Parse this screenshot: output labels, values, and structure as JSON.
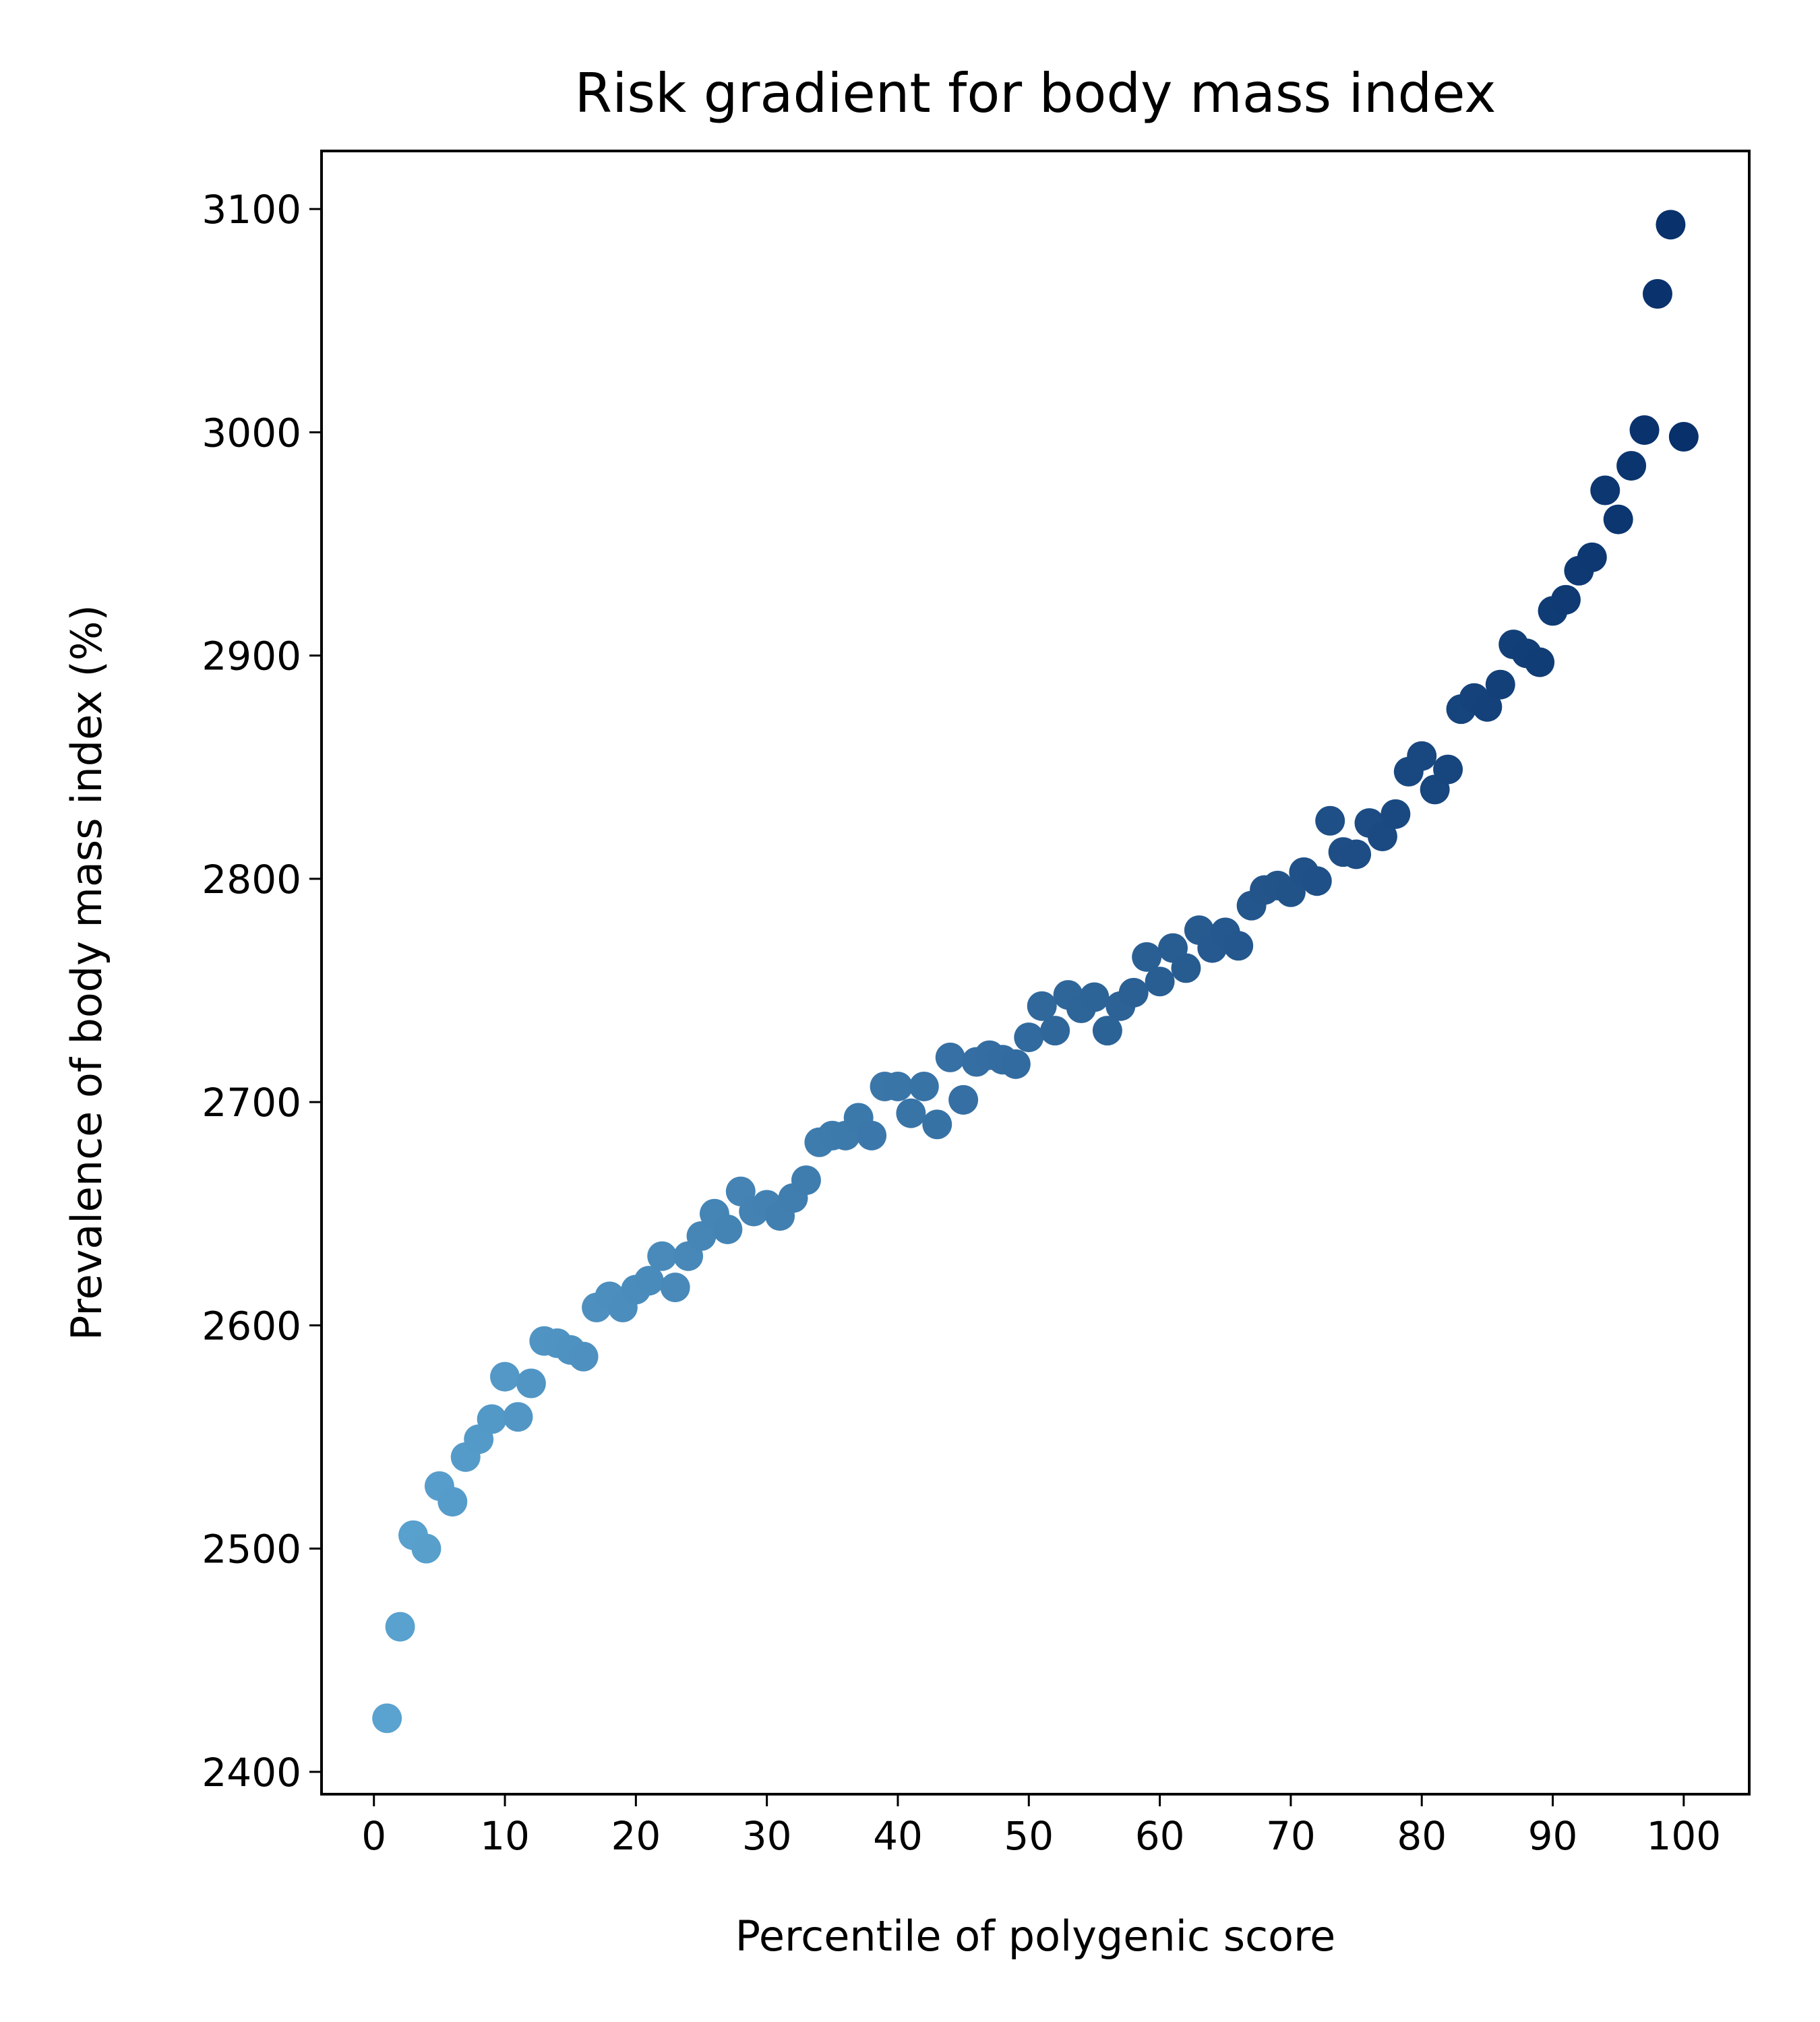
{
  "chart_data": {
    "type": "scatter",
    "title": "Risk gradient for body mass index",
    "xlabel": "Percentile of polygenic score",
    "ylabel": "Prevalence of body mass index (%)",
    "xlim": [
      -4,
      105
    ],
    "ylim": [
      2390,
      3126
    ],
    "x_ticks": [
      0,
      10,
      20,
      30,
      40,
      50,
      60,
      70,
      80,
      90,
      100
    ],
    "y_ticks": [
      2400,
      2500,
      2600,
      2700,
      2800,
      2900,
      3000,
      3100
    ],
    "grid": false,
    "legend": "none",
    "colormap": "Blues",
    "color_range": [
      "#5aa2cf",
      "#08306b"
    ],
    "series": [
      {
        "x": [
          1,
          2,
          3,
          4,
          5,
          6,
          7,
          8,
          9,
          10,
          11,
          12,
          13,
          14,
          15,
          16,
          17,
          18,
          19,
          20,
          21,
          22,
          23,
          24,
          25,
          26,
          27,
          28,
          29,
          30,
          31,
          32,
          33,
          34,
          35,
          36,
          37,
          38,
          39,
          40,
          41,
          42,
          43,
          44,
          45,
          46,
          47,
          48,
          49,
          50,
          51,
          52,
          53,
          54,
          55,
          56,
          57,
          58,
          59,
          60,
          61,
          62,
          63,
          64,
          65,
          66,
          67,
          68,
          69,
          70,
          71,
          72,
          73,
          74,
          75,
          76,
          77,
          78,
          79,
          80,
          81,
          82,
          83,
          84,
          85,
          86,
          87,
          88,
          89,
          90,
          91,
          92,
          93,
          94,
          95,
          96,
          97,
          98,
          99,
          100
        ],
        "y": [
          2424,
          2465,
          2506,
          2500,
          2528,
          2521,
          2541,
          2549,
          2558,
          2577,
          2559,
          2574,
          2593,
          2592,
          2589,
          2586,
          2608,
          2613,
          2608,
          2616,
          2620,
          2631,
          2617,
          2631,
          2640,
          2650,
          2643,
          2660,
          2651,
          2654,
          2649,
          2657,
          2665,
          2682,
          2685,
          2685,
          2693,
          2685,
          2707,
          2707,
          2695,
          2707,
          2690,
          2720,
          2701,
          2718,
          2721,
          2719,
          2717,
          2729,
          2743,
          2732,
          2748,
          2742,
          2747,
          2732,
          2743,
          2749,
          2765,
          2754,
          2769,
          2760,
          2777,
          2769,
          2776,
          2770,
          2788,
          2795,
          2797,
          2794,
          2803,
          2799,
          2826,
          2812,
          2811,
          2825,
          2819,
          2829,
          2848,
          2855,
          2840,
          2849,
          2876,
          2881,
          2877,
          2887,
          2905,
          2901,
          2897,
          2920,
          2925,
          2938,
          2944,
          2974,
          2961,
          2985,
          3001,
          3062,
          3093,
          2998
        ]
      }
    ]
  },
  "labels": {
    "title": "Risk gradient for body mass index",
    "xlabel": "Percentile of polygenic score",
    "ylabel": "Prevalence of body mass index (%)"
  }
}
